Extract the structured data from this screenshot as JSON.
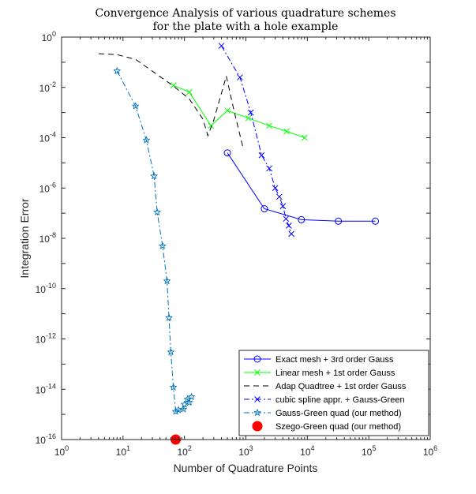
{
  "chart_data": {
    "type": "line",
    "title_lines": [
      "Convergence Analysis of various quadrature schemes",
      "for the plate with a hole example"
    ],
    "xlabel": "Number of Quadrature Points",
    "ylabel": "Integration Error",
    "xscale": "log",
    "yscale": "log",
    "xlim": [
      1,
      1000000
    ],
    "ylim": [
      1e-16,
      1
    ],
    "x_ticks": [
      {
        "base": "10",
        "exp": "0",
        "value": 1
      },
      {
        "base": "10",
        "exp": "1",
        "value": 10
      },
      {
        "base": "10",
        "exp": "2",
        "value": 100
      },
      {
        "base": "10",
        "exp": "3",
        "value": 1000
      },
      {
        "base": "10",
        "exp": "4",
        "value": 10000
      },
      {
        "base": "10",
        "exp": "5",
        "value": 100000
      },
      {
        "base": "10",
        "exp": "6",
        "value": 1000000
      }
    ],
    "y_ticks": [
      {
        "base": "10",
        "exp": "0",
        "value": 1
      },
      {
        "base": "10",
        "exp": "-2",
        "value": 0.01
      },
      {
        "base": "10",
        "exp": "-4",
        "value": 0.0001
      },
      {
        "base": "10",
        "exp": "-6",
        "value": 1e-06
      },
      {
        "base": "10",
        "exp": "-8",
        "value": 1e-08
      },
      {
        "base": "10",
        "exp": "-10",
        "value": 1e-10
      },
      {
        "base": "10",
        "exp": "-12",
        "value": 1e-12
      },
      {
        "base": "10",
        "exp": "-14",
        "value": 1e-14
      },
      {
        "base": "10",
        "exp": "-16",
        "value": 1e-16
      }
    ],
    "grid": false,
    "legend_position": "bottom-right",
    "series": [
      {
        "name": "Exact mesh + 3rd order Gauss",
        "color": "#0000ff",
        "dash": "solid",
        "marker": "circle",
        "x": [
          500,
          2000,
          8000,
          32000,
          128000
        ],
        "y": [
          2.5e-05,
          1.5e-07,
          5.5e-08,
          4.8e-08,
          4.8e-08
        ]
      },
      {
        "name": "Linear mesh + 1st order Gauss",
        "color": "#00ff00",
        "dash": "solid",
        "marker": "x",
        "x": [
          66,
          120,
          270,
          500,
          1100,
          2400,
          4600,
          9000
        ],
        "y": [
          0.012,
          0.0065,
          0.0003,
          0.0012,
          0.0006,
          0.0003,
          0.00018,
          0.0001
        ]
      },
      {
        "name": "Adap Quadtree + 1st order Gauss",
        "color": "#000000",
        "dash": "dashed",
        "marker": "none",
        "x": [
          4,
          8,
          16,
          64,
          120,
          200,
          240,
          300,
          480,
          640,
          900
        ],
        "y": [
          0.22,
          0.2,
          0.13,
          0.012,
          0.0035,
          0.00055,
          0.00012,
          0.0005,
          0.028,
          0.0012,
          4e-05
        ]
      },
      {
        "name": "cubic spline appr. + Gauss-Green",
        "color": "#0000ff",
        "dash": "dashdot",
        "marker": "x",
        "x": [
          400,
          800,
          1200,
          1800,
          2400,
          3000,
          3500,
          4000,
          4500,
          5000,
          5500
        ],
        "y": [
          0.45,
          0.025,
          0.001,
          2e-05,
          6e-06,
          1e-06,
          4.5e-07,
          1.9e-07,
          6e-08,
          3.2e-08,
          1.5e-08
        ]
      },
      {
        "name": "Gauss-Green quad (our method)",
        "color": "#0072bd",
        "dash": "dashdot",
        "marker": "star",
        "x": [
          8,
          16,
          24,
          32,
          36,
          44,
          52,
          56,
          60,
          66,
          72,
          80,
          96,
          100,
          112,
          120,
          130
        ],
        "y": [
          0.045,
          0.0018,
          8e-05,
          3e-06,
          1.1e-07,
          5e-09,
          2e-10,
          7e-12,
          3e-13,
          1.2e-14,
          1.3e-15,
          1.5e-15,
          1.6e-15,
          2.5e-15,
          4e-15,
          3e-15,
          5e-15
        ]
      },
      {
        "name": "Szego-Green quad (our method)",
        "color": "#ff0000",
        "dash": "none",
        "marker": "filled-circle",
        "x": [
          72
        ],
        "y": [
          1e-16
        ]
      }
    ]
  }
}
